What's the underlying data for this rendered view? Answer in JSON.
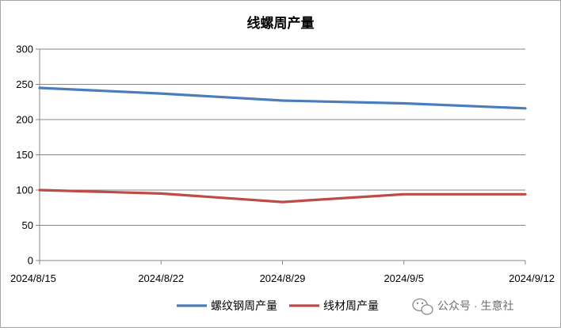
{
  "chart_data": {
    "type": "line",
    "title": "线螺周产量",
    "xlabel": "",
    "ylabel": "",
    "categories": [
      "2024/8/15",
      "2024/8/22",
      "2024/8/29",
      "2024/9/5",
      "2024/9/12"
    ],
    "yticks": [
      "0",
      "50",
      "100",
      "150",
      "200",
      "250",
      "300"
    ],
    "ylim": [
      0,
      300
    ],
    "grid": true,
    "legend_position": "bottom",
    "series": [
      {
        "name": "螺纹钢周产量",
        "color": "#4a7ebb",
        "values": [
          245,
          237,
          227,
          223,
          216
        ]
      },
      {
        "name": "线材周产量",
        "color": "#be4b48",
        "values": [
          100,
          95,
          83,
          94,
          94
        ]
      }
    ]
  },
  "watermark": {
    "text": "公众号 · 生意社",
    "icon": "wechat-icon"
  }
}
